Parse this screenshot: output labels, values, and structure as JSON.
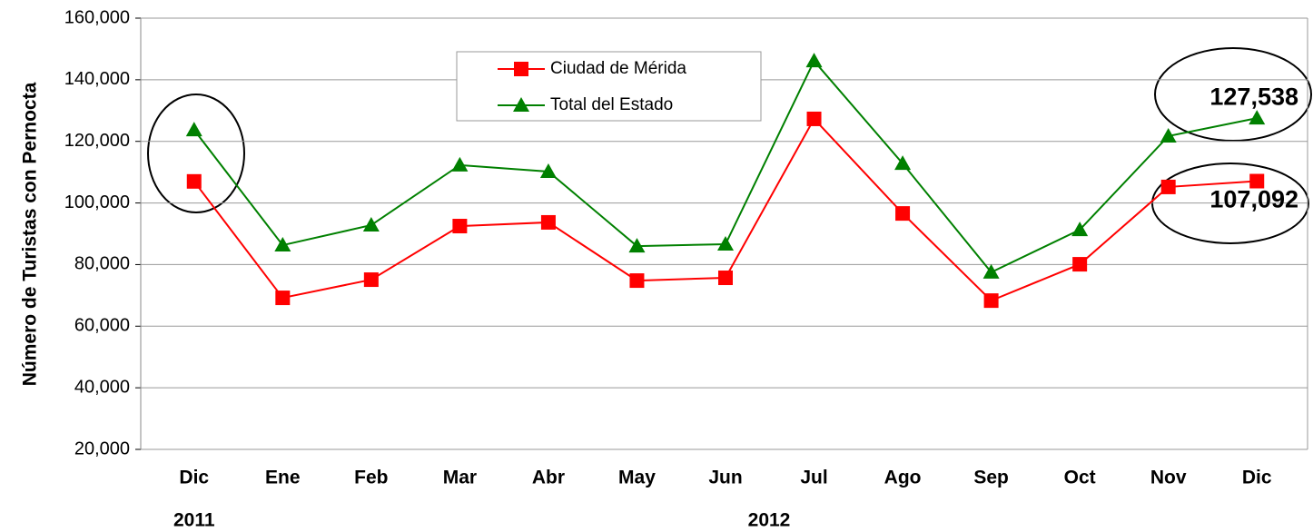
{
  "chart_data": {
    "type": "line",
    "y_label": "Número de Turistas con Pernocta",
    "categories": [
      "Dic",
      "Ene",
      "Feb",
      "Mar",
      "Abr",
      "May",
      "Jun",
      "Jul",
      "Ago",
      "Sep",
      "Oct",
      "Nov",
      "Dic"
    ],
    "series": [
      {
        "name": "Ciudad de Mérida",
        "color": "#ff0000",
        "marker": "square",
        "values": [
          107000,
          69200,
          75100,
          92500,
          93700,
          74800,
          75700,
          127300,
          96600,
          68300,
          80100,
          105200,
          107092
        ],
        "value_labels": [
          null,
          null,
          null,
          null,
          null,
          null,
          null,
          null,
          null,
          null,
          null,
          null,
          "107,092"
        ]
      },
      {
        "name": "Total del Estado",
        "color": "#008000",
        "marker": "triangle",
        "values": [
          123700,
          86300,
          92800,
          112300,
          110200,
          86000,
          86600,
          146100,
          112800,
          77500,
          91300,
          121700,
          127538
        ],
        "value_labels": [
          null,
          null,
          null,
          null,
          null,
          null,
          null,
          null,
          null,
          null,
          null,
          null,
          "127,538"
        ]
      }
    ],
    "annotations": [
      {
        "text": "2011",
        "category": 0
      },
      {
        "text": "2012",
        "category": 6
      }
    ],
    "ylim": [
      20000,
      160000
    ],
    "yticks": [
      {
        "value": 20000,
        "label": "20,000"
      },
      {
        "value": 40000,
        "label": "40,000"
      },
      {
        "value": 60000,
        "label": "60,000"
      },
      {
        "value": 80000,
        "label": "80,000"
      },
      {
        "value": 100000,
        "label": "100,000"
      },
      {
        "value": 120000,
        "label": "120,000"
      },
      {
        "value": 140000,
        "label": "140,000"
      },
      {
        "value": 160000,
        "label": "160,000"
      }
    ],
    "grid": true,
    "legend": "top"
  }
}
